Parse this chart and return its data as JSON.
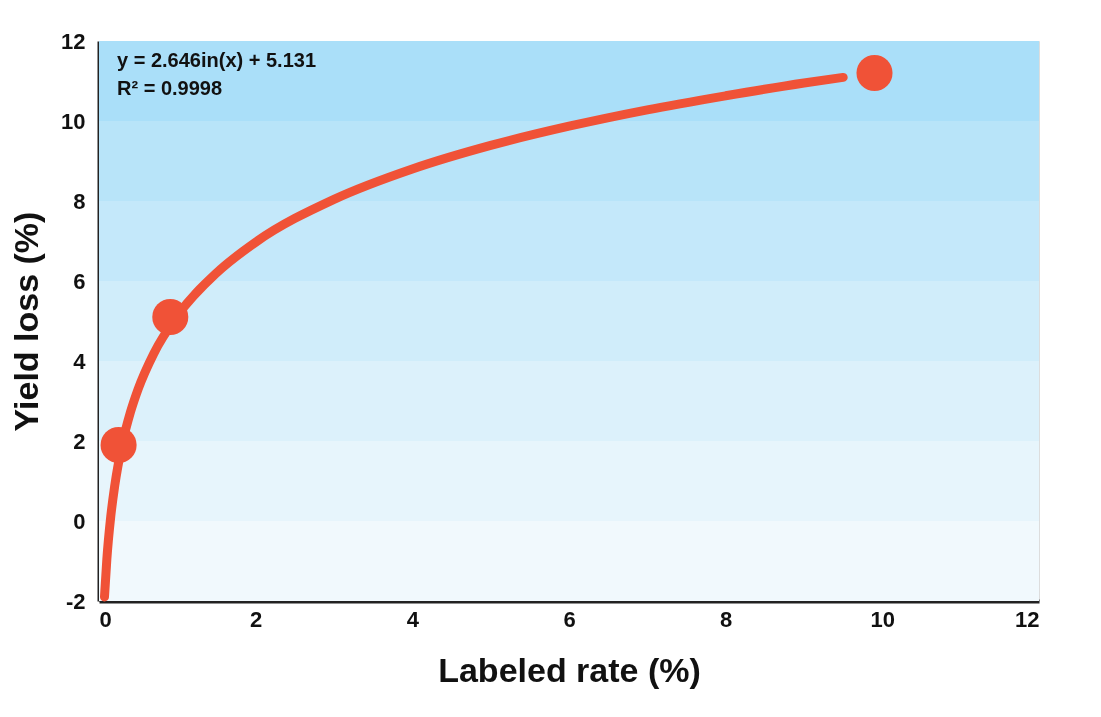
{
  "chart_data": {
    "type": "scatter",
    "xlabel": "Labeled rate (%)",
    "ylabel": "Yield loss (%)",
    "x": [
      0.25,
      0.91,
      9.9
    ],
    "values": [
      1.9,
      5.1,
      11.2
    ],
    "color": "#f05237",
    "marker": "circle",
    "series": [
      {
        "type": "line",
        "color": "#f05237",
        "marker": "none",
        "x": [
          0.07,
          0.1,
          0.15,
          0.2,
          0.3,
          0.4,
          0.5,
          0.7,
          1,
          1.5,
          2,
          3,
          4,
          5,
          6,
          7,
          8,
          9,
          9.5
        ],
        "values": [
          -1.9,
          -0.96,
          0.11,
          0.87,
          1.95,
          2.71,
          3.3,
          4.19,
          5.13,
          6.2,
          6.97,
          8.04,
          8.8,
          9.39,
          9.87,
          10.28,
          10.63,
          10.95,
          11.09
        ]
      }
    ],
    "annotations": [
      "y = 2.646in(x) + 5.131",
      "R² = 0.9998"
    ],
    "xlim": [
      0,
      12
    ],
    "xticks": [
      0,
      2,
      4,
      6,
      8,
      10,
      12
    ],
    "ylim": [
      -2,
      12
    ],
    "yticks": [
      -2,
      0,
      2,
      4,
      6,
      8,
      10,
      12
    ],
    "grid": false,
    "bands": [
      {
        "axis": "y",
        "from": -2,
        "to": 0,
        "color": "#f1f9fd"
      },
      {
        "axis": "y",
        "from": 0,
        "to": 2,
        "color": "#e7f5fc"
      },
      {
        "axis": "y",
        "from": 2,
        "to": 4,
        "color": "#dcf1fb"
      },
      {
        "axis": "y",
        "from": 4,
        "to": 6,
        "color": "#d0edfa"
      },
      {
        "axis": "y",
        "from": 6,
        "to": 8,
        "color": "#c4e8fa"
      },
      {
        "axis": "y",
        "from": 8,
        "to": 10,
        "color": "#b8e4f9"
      },
      {
        "axis": "y",
        "from": 10,
        "to": 12,
        "color": "#aadff9"
      }
    ]
  }
}
